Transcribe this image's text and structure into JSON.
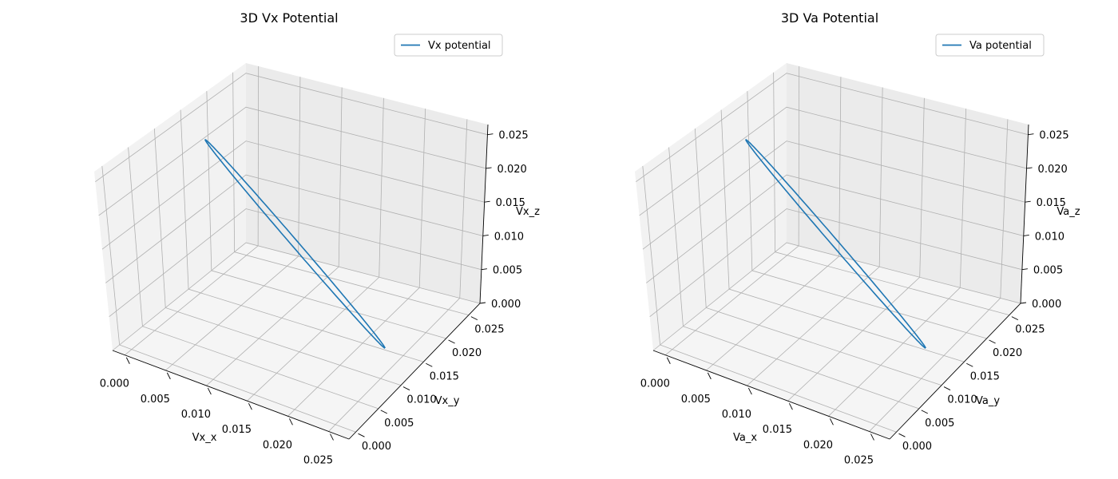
{
  "chart_data": [
    {
      "type": "line3d",
      "title": "3D Vx Potential",
      "xlabel": "Vx_x",
      "ylabel": "Vx_y",
      "zlabel": "Vx_z",
      "xlim": [
        -0.0015,
        0.0275
      ],
      "ylim": [
        -0.0015,
        0.0275
      ],
      "zlim": [
        0.0,
        0.0265
      ],
      "xticks": [
        "0.000",
        "0.005",
        "0.010",
        "0.015",
        "0.020",
        "0.025"
      ],
      "yticks": [
        "0.000",
        "0.005",
        "0.010",
        "0.015",
        "0.020",
        "0.025"
      ],
      "zticks": [
        "0.000",
        "0.005",
        "0.010",
        "0.015",
        "0.020",
        "0.025"
      ],
      "legend": {
        "label": "Vx potential",
        "position": "upper-right"
      },
      "color": "#1f77b4",
      "grid": true,
      "series": [
        {
          "name": "Vx potential",
          "description_points": {
            "x": [
              0.0,
              0.025,
              0.0
            ],
            "y": [
              0.025,
              0.0,
              0.025
            ],
            "z": [
              0.0257,
              0.0,
              0.0257
            ]
          }
        }
      ]
    },
    {
      "type": "line3d",
      "title": "3D Va Potential",
      "xlabel": "Va_x",
      "ylabel": "Va_y",
      "zlabel": "Va_z",
      "xlim": [
        -0.0015,
        0.0275
      ],
      "ylim": [
        -0.0015,
        0.0275
      ],
      "zlim": [
        0.0,
        0.0265
      ],
      "xticks": [
        "0.000",
        "0.005",
        "0.010",
        "0.015",
        "0.020",
        "0.025"
      ],
      "yticks": [
        "0.000",
        "0.005",
        "0.010",
        "0.015",
        "0.020",
        "0.025"
      ],
      "zticks": [
        "0.000",
        "0.005",
        "0.010",
        "0.015",
        "0.020",
        "0.025"
      ],
      "legend": {
        "label": "Va potential",
        "position": "upper-right"
      },
      "color": "#1f77b4",
      "grid": true,
      "series": [
        {
          "name": "Va potential",
          "description_points": {
            "x": [
              0.0,
              0.025,
              0.0
            ],
            "y": [
              0.025,
              0.0,
              0.025
            ],
            "z": [
              0.0257,
              0.0,
              0.0257
            ]
          }
        }
      ]
    }
  ]
}
